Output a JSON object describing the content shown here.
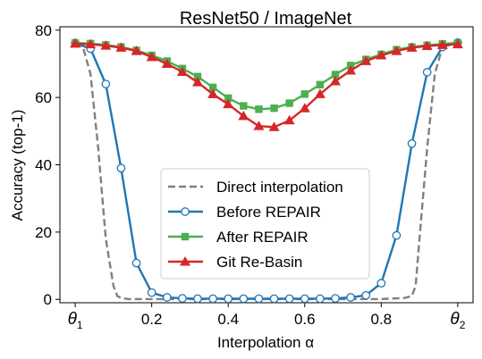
{
  "chart_data": {
    "type": "line",
    "title": "ResNet50 / ImageNet",
    "xlabel": "Interpolation α",
    "ylabel": "Accuracy (top-1)",
    "xlim": [
      -0.04,
      1.04
    ],
    "ylim": [
      -1,
      81
    ],
    "x_ticks": [
      {
        "value": 0.0,
        "label": "θ",
        "sub": "1"
      },
      {
        "value": 0.2,
        "label": "0.2"
      },
      {
        "value": 0.4,
        "label": "0.4"
      },
      {
        "value": 0.6,
        "label": "0.6"
      },
      {
        "value": 0.8,
        "label": "0.8"
      },
      {
        "value": 1.0,
        "label": "θ",
        "sub": "2"
      }
    ],
    "y_ticks": [
      0,
      20,
      40,
      60,
      80
    ],
    "legend_position": "lower-center",
    "series": [
      {
        "name": "Direct interpolation",
        "style": "dashed",
        "color": "#808080",
        "marker": "none",
        "x": [
          0.0,
          0.02,
          0.04,
          0.06,
          0.08,
          0.1,
          0.11,
          0.12,
          0.14,
          0.2,
          0.3,
          0.4,
          0.5,
          0.6,
          0.7,
          0.8,
          0.86,
          0.88,
          0.89,
          0.9,
          0.92,
          0.94,
          0.96,
          0.98,
          1.0
        ],
        "y": [
          76.1,
          75.0,
          67.0,
          45.0,
          18.0,
          4.0,
          1.0,
          0.4,
          0.1,
          0.1,
          0.1,
          0.1,
          0.1,
          0.1,
          0.1,
          0.1,
          0.4,
          1.0,
          4.0,
          18.0,
          45.0,
          67.0,
          75.0,
          76.1,
          76.1
        ]
      },
      {
        "name": "Before REPAIR",
        "style": "solid",
        "color": "#1f77b4",
        "marker": "circle-open",
        "x": [
          0.0,
          0.04,
          0.08,
          0.12,
          0.16,
          0.2,
          0.24,
          0.28,
          0.32,
          0.36,
          0.4,
          0.44,
          0.48,
          0.52,
          0.56,
          0.6,
          0.64,
          0.68,
          0.72,
          0.76,
          0.8,
          0.84,
          0.88,
          0.92,
          0.96,
          1.0
        ],
        "y": [
          76.2,
          74.5,
          64.0,
          39.0,
          10.8,
          2.0,
          0.6,
          0.3,
          0.2,
          0.2,
          0.2,
          0.2,
          0.2,
          0.2,
          0.2,
          0.2,
          0.2,
          0.3,
          0.6,
          1.2,
          4.8,
          19.0,
          46.3,
          67.5,
          75.0,
          76.3
        ]
      },
      {
        "name": "After REPAIR",
        "style": "solid",
        "color": "#4caf50",
        "marker": "square",
        "x": [
          0.0,
          0.04,
          0.08,
          0.12,
          0.16,
          0.2,
          0.24,
          0.28,
          0.32,
          0.36,
          0.4,
          0.44,
          0.48,
          0.52,
          0.56,
          0.6,
          0.64,
          0.68,
          0.72,
          0.76,
          0.8,
          0.84,
          0.88,
          0.92,
          0.96,
          1.0
        ],
        "y": [
          76.2,
          76.0,
          75.6,
          75.0,
          74.0,
          72.5,
          70.8,
          68.6,
          66.2,
          63.0,
          59.8,
          57.5,
          56.5,
          56.8,
          58.3,
          61.0,
          63.8,
          66.8,
          69.5,
          71.3,
          72.8,
          74.2,
          75.0,
          75.5,
          75.9,
          76.2
        ]
      },
      {
        "name": "Git Re-Basin",
        "style": "solid",
        "color": "#d62728",
        "marker": "triangle",
        "x": [
          0.0,
          0.04,
          0.08,
          0.12,
          0.16,
          0.2,
          0.24,
          0.28,
          0.32,
          0.36,
          0.4,
          0.44,
          0.48,
          0.52,
          0.56,
          0.6,
          0.64,
          0.68,
          0.72,
          0.76,
          0.8,
          0.84,
          0.88,
          0.92,
          0.96,
          1.0
        ],
        "y": [
          76.0,
          75.8,
          75.4,
          74.8,
          73.8,
          72.0,
          70.0,
          67.6,
          64.5,
          61.0,
          58.0,
          54.5,
          51.5,
          51.2,
          53.2,
          56.8,
          61.0,
          64.8,
          68.0,
          70.8,
          72.5,
          73.8,
          74.8,
          75.3,
          75.6,
          75.8
        ]
      }
    ]
  }
}
